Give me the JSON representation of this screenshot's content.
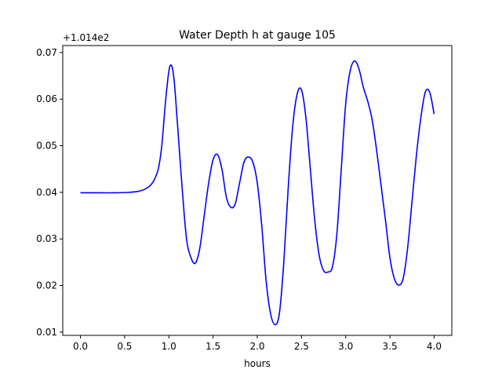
{
  "chart_data": {
    "type": "line",
    "title": "Water Depth h at gauge 105",
    "xlabel": "hours",
    "ylabel": "",
    "y_offset_label": "+1.014e2",
    "xlim": [
      -0.2,
      4.2
    ],
    "ylim": [
      0.0093,
      0.0715
    ],
    "x_ticks": [
      0.0,
      0.5,
      1.0,
      1.5,
      2.0,
      2.5,
      3.0,
      3.5,
      4.0
    ],
    "x_tick_labels": [
      "0.0",
      "0.5",
      "1.0",
      "1.5",
      "2.0",
      "2.5",
      "3.0",
      "3.5",
      "4.0"
    ],
    "y_ticks": [
      0.01,
      0.02,
      0.03,
      0.04,
      0.05,
      0.06,
      0.07
    ],
    "y_tick_labels": [
      "0.01",
      "0.02",
      "0.03",
      "0.04",
      "0.05",
      "0.06",
      "0.07"
    ],
    "grid": false,
    "series": [
      {
        "color": "#0000ff",
        "x": [
          0.0,
          0.2,
          0.4,
          0.55,
          0.65,
          0.72,
          0.78,
          0.83,
          0.88,
          0.92,
          0.96,
          1.0,
          1.03,
          1.06,
          1.1,
          1.15,
          1.2,
          1.25,
          1.3,
          1.35,
          1.4,
          1.45,
          1.5,
          1.55,
          1.6,
          1.65,
          1.7,
          1.75,
          1.8,
          1.85,
          1.9,
          1.95,
          2.0,
          2.05,
          2.1,
          2.15,
          2.2,
          2.25,
          2.3,
          2.35,
          2.4,
          2.45,
          2.5,
          2.55,
          2.6,
          2.65,
          2.7,
          2.75,
          2.8,
          2.85,
          2.9,
          2.95,
          3.0,
          3.05,
          3.1,
          3.15,
          3.2,
          3.25,
          3.3,
          3.35,
          3.4,
          3.45,
          3.5,
          3.55,
          3.6,
          3.65,
          3.7,
          3.75,
          3.8,
          3.85,
          3.9,
          3.95,
          4.0
        ],
        "y": [
          0.0399,
          0.0399,
          0.0399,
          0.04,
          0.0402,
          0.0406,
          0.0413,
          0.0425,
          0.045,
          0.05,
          0.059,
          0.066,
          0.0672,
          0.064,
          0.054,
          0.041,
          0.03,
          0.026,
          0.0248,
          0.028,
          0.035,
          0.042,
          0.047,
          0.0481,
          0.045,
          0.039,
          0.0368,
          0.0375,
          0.042,
          0.0465,
          0.0476,
          0.0465,
          0.042,
          0.033,
          0.021,
          0.014,
          0.0116,
          0.014,
          0.025,
          0.041,
          0.054,
          0.061,
          0.062,
          0.056,
          0.045,
          0.034,
          0.0265,
          0.0232,
          0.0229,
          0.024,
          0.031,
          0.045,
          0.059,
          0.066,
          0.0682,
          0.0665,
          0.0625,
          0.0595,
          0.0555,
          0.049,
          0.0415,
          0.034,
          0.026,
          0.0215,
          0.0201,
          0.0215,
          0.028,
          0.038,
          0.048,
          0.056,
          0.0615,
          0.0615,
          0.0568
        ]
      }
    ]
  }
}
